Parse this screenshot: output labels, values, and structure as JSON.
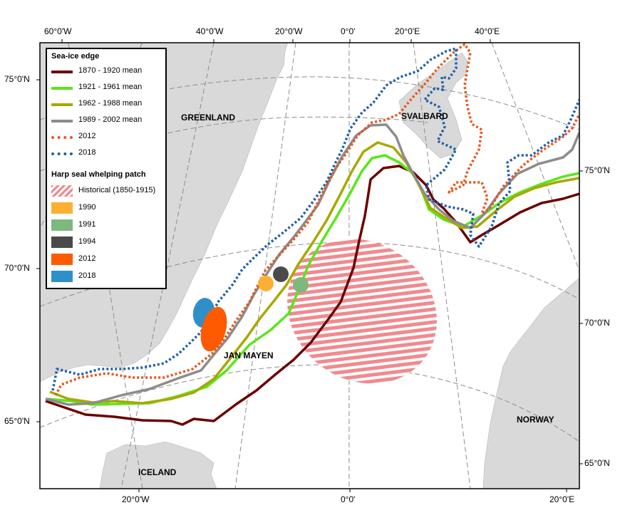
{
  "map": {
    "top_axis": [
      "60°0'W",
      "40°0'W",
      "20°0'W",
      "0°0'",
      "20°0'E",
      "40°0'E"
    ],
    "bottom_axis": [
      "20°0'W",
      "0°0'",
      "20°0'E"
    ],
    "left_axis": [
      "75°0'N",
      "70°0'N",
      "65°0'N"
    ],
    "right_axis": [
      "75°0'N",
      "70°0'N",
      "65°0'N"
    ],
    "regions": {
      "greenland": "GREENLAND",
      "svalbard": "SVALBARD",
      "jan_mayen": "JAN MAYEN",
      "iceland": "ICELAND",
      "norway": "NORWAY"
    },
    "colors": {
      "land": "#d9d9d9",
      "sea": "#ffffff",
      "graticule": "#8c8c8c",
      "mean_1870_1920": "#6b0000",
      "mean_1921_1961": "#5ae619",
      "mean_1962_1988": "#a8a800",
      "mean_1989_2002": "#8c8c8c",
      "edge_2012": "#e8561d",
      "edge_2018": "#1f5fa8"
    }
  },
  "legend": {
    "ice_title": "Sea-ice edge",
    "ice_items": [
      {
        "label": "1870 - 1920 mean",
        "color": "#6b0000",
        "style": "solid"
      },
      {
        "label": "1921 - 1961 mean",
        "color": "#5ae619",
        "style": "solid"
      },
      {
        "label": "1962 - 1988 mean",
        "color": "#a8a800",
        "style": "solid"
      },
      {
        "label": "1989 - 2002 mean",
        "color": "#8c8c8c",
        "style": "solid"
      },
      {
        "label": "2012",
        "color": "#e8561d",
        "style": "dotted"
      },
      {
        "label": "2018",
        "color": "#1f5fa8",
        "style": "dotted"
      }
    ],
    "seal_title": "Harp seal whelping patch",
    "seal_items": [
      {
        "label": "Historical (1850-1915)",
        "color": "#f08a8f",
        "style": "hatched"
      },
      {
        "label": "1990",
        "color": "#fbb034",
        "style": "fill"
      },
      {
        "label": "1991",
        "color": "#7db87d",
        "style": "fill"
      },
      {
        "label": "1994",
        "color": "#4a4a4a",
        "style": "fill"
      },
      {
        "label": "2012",
        "color": "#ff5a00",
        "style": "fill"
      },
      {
        "label": "2018",
        "color": "#2f8fc9",
        "style": "fill"
      }
    ]
  }
}
